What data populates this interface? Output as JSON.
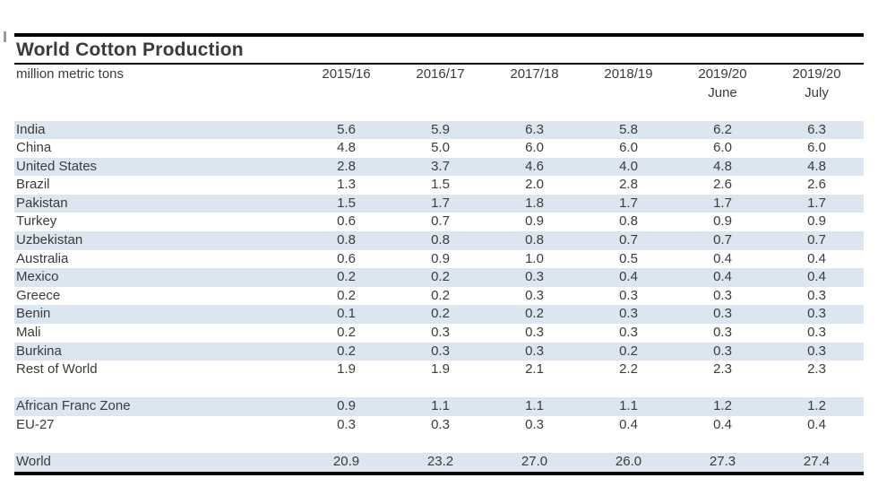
{
  "title": "World Cotton Production",
  "unit_label": "million metric tons",
  "colors": {
    "row_band": "#dce6f1",
    "rule": "#000000",
    "text": "#3b3b3b",
    "background": "#ffffff"
  },
  "chart_data": {
    "type": "table",
    "title": "World Cotton Production",
    "unit": "million metric tons",
    "columns": [
      {
        "label": "2015/16",
        "sub": ""
      },
      {
        "label": "2016/17",
        "sub": ""
      },
      {
        "label": "2017/18",
        "sub": ""
      },
      {
        "label": "2018/19",
        "sub": ""
      },
      {
        "label": "2019/20",
        "sub": "June"
      },
      {
        "label": "2019/20",
        "sub": "July"
      }
    ],
    "rows": [
      {
        "label": "India",
        "values": [
          "5.6",
          "5.9",
          "6.3",
          "5.8",
          "6.2",
          "6.3"
        ],
        "band": true
      },
      {
        "label": "China",
        "values": [
          "4.8",
          "5.0",
          "6.0",
          "6.0",
          "6.0",
          "6.0"
        ]
      },
      {
        "label": "United States",
        "values": [
          "2.8",
          "3.7",
          "4.6",
          "4.0",
          "4.8",
          "4.8"
        ],
        "band": true
      },
      {
        "label": "Brazil",
        "values": [
          "1.3",
          "1.5",
          "2.0",
          "2.8",
          "2.6",
          "2.6"
        ]
      },
      {
        "label": "Pakistan",
        "values": [
          "1.5",
          "1.7",
          "1.8",
          "1.7",
          "1.7",
          "1.7"
        ],
        "band": true
      },
      {
        "label": "Turkey",
        "values": [
          "0.6",
          "0.7",
          "0.9",
          "0.8",
          "0.9",
          "0.9"
        ]
      },
      {
        "label": "Uzbekistan",
        "values": [
          "0.8",
          "0.8",
          "0.8",
          "0.7",
          "0.7",
          "0.7"
        ],
        "band": true
      },
      {
        "label": "Australia",
        "values": [
          "0.6",
          "0.9",
          "1.0",
          "0.5",
          "0.4",
          "0.4"
        ]
      },
      {
        "label": "Mexico",
        "values": [
          "0.2",
          "0.2",
          "0.3",
          "0.4",
          "0.4",
          "0.4"
        ],
        "band": true
      },
      {
        "label": "Greece",
        "values": [
          "0.2",
          "0.2",
          "0.3",
          "0.3",
          "0.3",
          "0.3"
        ]
      },
      {
        "label": "Benin",
        "values": [
          "0.1",
          "0.2",
          "0.2",
          "0.3",
          "0.3",
          "0.3"
        ],
        "band": true
      },
      {
        "label": "Mali",
        "values": [
          "0.2",
          "0.3",
          "0.3",
          "0.3",
          "0.3",
          "0.3"
        ]
      },
      {
        "label": "Burkina",
        "values": [
          "0.2",
          "0.3",
          "0.3",
          "0.2",
          "0.3",
          "0.3"
        ],
        "band": true
      },
      {
        "label": "Rest of World",
        "values": [
          "1.9",
          "1.9",
          "2.1",
          "2.2",
          "2.3",
          "2.3"
        ]
      },
      {
        "label": "",
        "values": [
          "",
          "",
          "",
          "",
          "",
          ""
        ],
        "spacer": true
      },
      {
        "label": "African Franc Zone",
        "values": [
          "0.9",
          "1.1",
          "1.1",
          "1.1",
          "1.2",
          "1.2"
        ],
        "band": true
      },
      {
        "label": "EU-27",
        "values": [
          "0.3",
          "0.3",
          "0.3",
          "0.4",
          "0.4",
          "0.4"
        ]
      },
      {
        "label": "",
        "values": [
          "",
          "",
          "",
          "",
          "",
          ""
        ],
        "spacer": true
      },
      {
        "label": "World",
        "values": [
          "20.9",
          "23.2",
          "27.0",
          "26.0",
          "27.3",
          "27.4"
        ],
        "band": true
      }
    ]
  }
}
